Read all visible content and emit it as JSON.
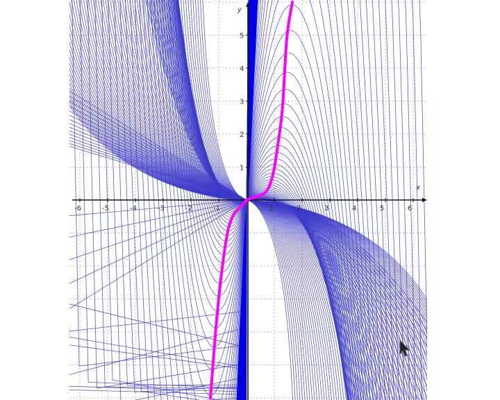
{
  "chart_data": {
    "type": "line",
    "title": "",
    "xlabel": "x",
    "ylabel": "y",
    "xlim": [
      -6.3,
      6.5
    ],
    "ylim": [
      -6.1,
      6.05
    ],
    "grid": true,
    "x_ticks": [
      "-6",
      "-5",
      "-4",
      "-3",
      "-2",
      "-1",
      "1",
      "2",
      "3",
      "4",
      "5",
      "6"
    ],
    "y_ticks": [
      "1",
      "2",
      "3",
      "4",
      "5"
    ],
    "family_color": "#3b3bc8",
    "band_color": "#0000e6",
    "highlight_color": "#ff00ff",
    "highlight_curve": {
      "x": [
        -1.3,
        -1.05,
        -0.75,
        -0.5,
        -0.12,
        0.0,
        0.27,
        0.7,
        0.95,
        1.15,
        1.3,
        1.45,
        1.65
      ],
      "y": [
        -6.0,
        -3.4,
        -1.3,
        -0.5,
        -0.13,
        0.0,
        0.08,
        0.25,
        0.77,
        1.8,
        2.85,
        4.9,
        6.0
      ]
    }
  },
  "cursor": {
    "icon": "mouse-pointer-icon"
  }
}
